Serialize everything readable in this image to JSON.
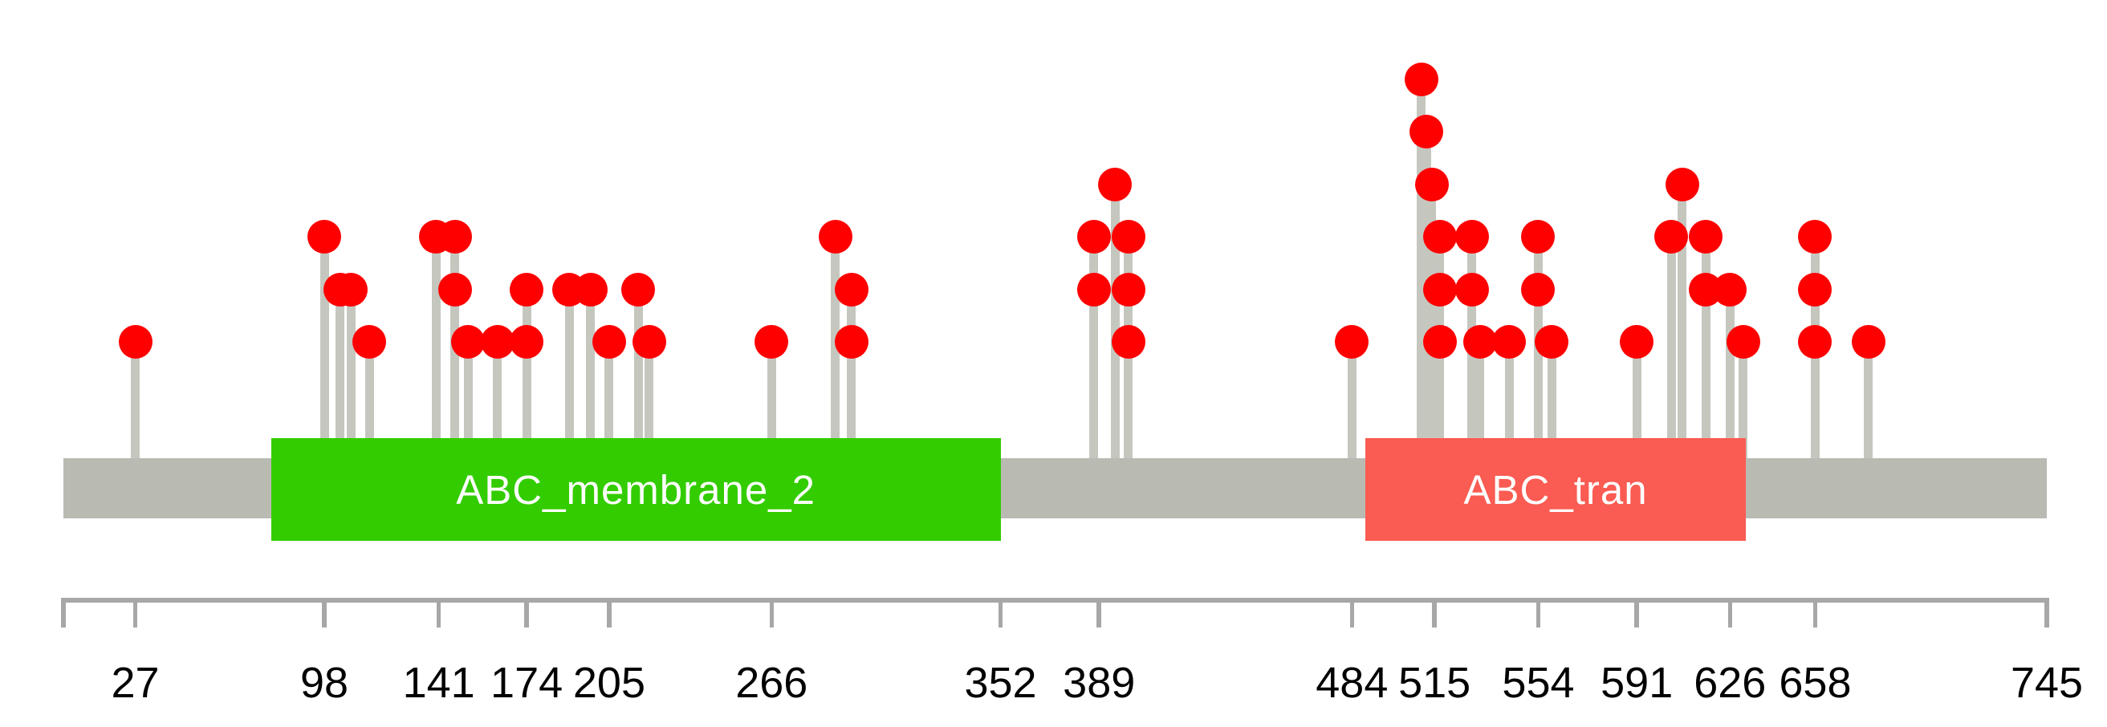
{
  "chart_data": {
    "type": "lollipop",
    "title": "",
    "protein_length": 745,
    "xlabel": "",
    "ylabel": "",
    "axis": {
      "start": 0,
      "end": 745,
      "tick_labels": [
        "27",
        "98",
        "141",
        "174",
        "205",
        "266",
        "352",
        "389",
        "484",
        "515",
        "554",
        "591",
        "626",
        "658",
        "745"
      ],
      "tick_positions": [
        27,
        98,
        141,
        174,
        205,
        266,
        352,
        389,
        484,
        515,
        554,
        591,
        626,
        658,
        745
      ]
    },
    "backbone": {
      "start": 0,
      "end": 745,
      "color": "#B9BBB3"
    },
    "domains": [
      {
        "name": "ABC_membrane_2",
        "start": 78,
        "end": 352,
        "color": "#33CC00",
        "text_color": "#FFFFFF"
      },
      {
        "name": "ABC_tran",
        "start": 489,
        "end": 632,
        "color": "#FA5B52",
        "text_color": "#FFFFFF"
      }
    ],
    "mutations": [
      {
        "pos": 27,
        "levels": [
          1
        ]
      },
      {
        "pos": 98,
        "levels": [
          3
        ]
      },
      {
        "pos": 104,
        "levels": [
          2
        ]
      },
      {
        "pos": 108,
        "levels": [
          2
        ]
      },
      {
        "pos": 115,
        "levels": [
          1
        ]
      },
      {
        "pos": 140,
        "levels": [
          3
        ]
      },
      {
        "pos": 147,
        "levels": [
          2,
          3
        ]
      },
      {
        "pos": 152,
        "levels": [
          1
        ]
      },
      {
        "pos": 163,
        "levels": [
          1
        ]
      },
      {
        "pos": 174,
        "levels": [
          1,
          2
        ]
      },
      {
        "pos": 190,
        "levels": [
          2
        ]
      },
      {
        "pos": 198,
        "levels": [
          2
        ]
      },
      {
        "pos": 205,
        "levels": [
          1
        ]
      },
      {
        "pos": 216,
        "levels": [
          2
        ]
      },
      {
        "pos": 220,
        "levels": [
          1
        ]
      },
      {
        "pos": 266,
        "levels": [
          1
        ]
      },
      {
        "pos": 290,
        "levels": [
          3
        ]
      },
      {
        "pos": 296,
        "levels": [
          1,
          2
        ]
      },
      {
        "pos": 387,
        "levels": [
          2,
          3
        ]
      },
      {
        "pos": 395,
        "levels": [
          4
        ]
      },
      {
        "pos": 400,
        "levels": [
          1,
          2,
          3
        ]
      },
      {
        "pos": 484,
        "levels": [
          1
        ]
      },
      {
        "pos": 510,
        "levels": [
          6
        ]
      },
      {
        "pos": 512,
        "levels": [
          5
        ]
      },
      {
        "pos": 514,
        "levels": [
          4
        ]
      },
      {
        "pos": 517,
        "levels": [
          1,
          2,
          3
        ]
      },
      {
        "pos": 529,
        "levels": [
          2,
          3
        ]
      },
      {
        "pos": 532,
        "levels": [
          1
        ]
      },
      {
        "pos": 543,
        "levels": [
          1
        ]
      },
      {
        "pos": 554,
        "levels": [
          2,
          3
        ]
      },
      {
        "pos": 559,
        "levels": [
          1
        ]
      },
      {
        "pos": 591,
        "levels": [
          1
        ]
      },
      {
        "pos": 604,
        "levels": [
          3
        ]
      },
      {
        "pos": 608,
        "levels": [
          4
        ]
      },
      {
        "pos": 617,
        "levels": [
          2,
          3
        ]
      },
      {
        "pos": 626,
        "levels": [
          2
        ]
      },
      {
        "pos": 631,
        "levels": [
          1
        ]
      },
      {
        "pos": 658,
        "levels": [
          1,
          2,
          3
        ]
      },
      {
        "pos": 678,
        "levels": [
          1
        ]
      }
    ],
    "colors": {
      "marker": "#FE0000",
      "stick": "#C5C7BF",
      "backbone": "#B9BBB3",
      "axis": "#A7A7A7",
      "tick_label": "#000000"
    },
    "legend": null,
    "grid": false
  }
}
